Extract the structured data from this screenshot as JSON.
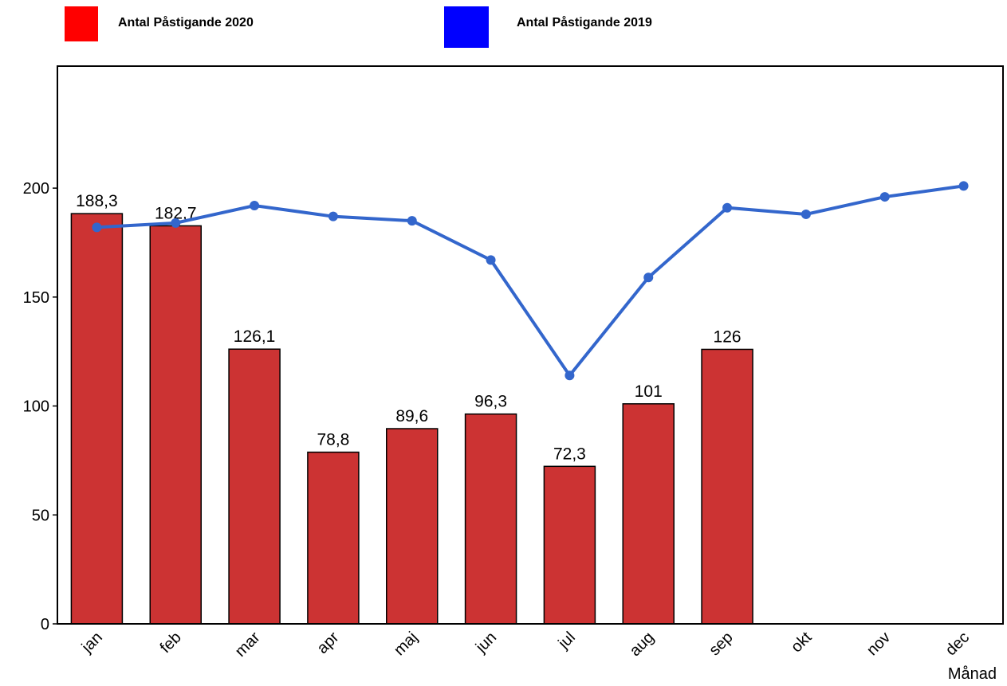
{
  "chart_data": {
    "type": "bar-line",
    "categories": [
      "jan",
      "feb",
      "mar",
      "apr",
      "maj",
      "jun",
      "jul",
      "aug",
      "sep",
      "okt",
      "nov",
      "dec"
    ],
    "x_label": "Månad",
    "series": [
      {
        "name": "Antal Påstigande 2020",
        "type": "bar",
        "color": "#cc3333",
        "legend_color": "#ff0000",
        "values": [
          188.3,
          182.7,
          126.1,
          78.8,
          89.6,
          96.3,
          72.3,
          101,
          126,
          null,
          null,
          null
        ],
        "value_labels": [
          "188,3",
          "182,7",
          "126,1",
          "78,8",
          "89,6",
          "96,3",
          "72,3",
          "101",
          "126",
          null,
          null,
          null
        ]
      },
      {
        "name": "Antal Påstigande 2019",
        "type": "line",
        "color": "#3366cc",
        "legend_color": "#0000ff",
        "values": [
          182,
          184,
          192,
          187,
          185,
          167,
          114,
          159,
          191,
          188,
          196,
          201
        ]
      }
    ],
    "ylim": [
      0,
      256
    ],
    "yticks": [
      0,
      50,
      100,
      150,
      200
    ]
  }
}
